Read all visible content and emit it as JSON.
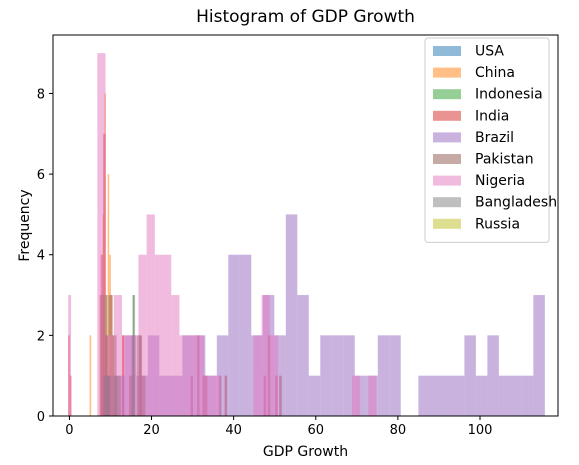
{
  "chart_data": {
    "type": "histogram",
    "title": "Histogram of GDP Growth",
    "xlabel": "GDP Growth",
    "ylabel": "Frequency",
    "xlim": [
      -4,
      119
    ],
    "ylim": [
      0,
      9.45
    ],
    "xticks": [
      0,
      20,
      40,
      60,
      80,
      100
    ],
    "yticks": [
      0,
      2,
      4,
      6,
      8
    ],
    "grid": false,
    "legend_position": "top-right",
    "series": [
      {
        "name": "USA",
        "color": "#1f77b4",
        "bins": []
      },
      {
        "name": "China",
        "color": "#ff7f0e",
        "bins": [
          [
            4.9,
            5.3,
            2
          ],
          [
            7.3,
            7.7,
            3
          ],
          [
            8.1,
            8.5,
            5
          ],
          [
            8.5,
            8.9,
            8
          ],
          [
            8.9,
            9.3,
            3
          ],
          [
            9.3,
            9.7,
            6
          ],
          [
            9.7,
            10.1,
            4
          ],
          [
            10.1,
            10.5,
            3
          ],
          [
            10.5,
            10.9,
            2
          ],
          [
            10.9,
            11.3,
            1
          ],
          [
            12.9,
            13.3,
            2
          ]
        ]
      },
      {
        "name": "Indonesia",
        "color": "#2ca02c",
        "bins": [
          [
            15.4,
            15.8,
            3
          ],
          [
            17.3,
            17.7,
            2
          ]
        ]
      },
      {
        "name": "India",
        "color": "#d62728",
        "bins": [
          [
            -0.3,
            0.1,
            2
          ],
          [
            0.1,
            0.5,
            1
          ],
          [
            7.6,
            8.2,
            4
          ],
          [
            8.2,
            8.8,
            7
          ],
          [
            8.8,
            9.4,
            2
          ],
          [
            9.4,
            10.0,
            1
          ],
          [
            12.8,
            13.4,
            2
          ],
          [
            15.1,
            15.7,
            2
          ],
          [
            16.9,
            17.5,
            2
          ],
          [
            29.5,
            30.1,
            1
          ],
          [
            31.1,
            31.7,
            2
          ],
          [
            32.4,
            33.0,
            1
          ],
          [
            33.0,
            33.6,
            1
          ],
          [
            36.4,
            37.0,
            1
          ],
          [
            37.8,
            38.4,
            1
          ],
          [
            47.3,
            47.9,
            1
          ],
          [
            48.3,
            48.9,
            2
          ],
          [
            50.1,
            50.7,
            1
          ],
          [
            51.1,
            51.7,
            1
          ]
        ]
      },
      {
        "name": "Brazil",
        "color": "#9467bd",
        "bins": [
          [
            7.9,
            10.7,
            1
          ],
          [
            10.7,
            13.5,
            1
          ],
          [
            13.5,
            16.3,
            2
          ],
          [
            16.3,
            19.1,
            1
          ],
          [
            19.1,
            21.9,
            2
          ],
          [
            21.9,
            24.7,
            1
          ],
          [
            24.7,
            27.5,
            1
          ],
          [
            27.5,
            30.3,
            2
          ],
          [
            30.3,
            33.1,
            2
          ],
          [
            33.1,
            35.9,
            1
          ],
          [
            35.9,
            38.7,
            2
          ],
          [
            38.7,
            41.5,
            4
          ],
          [
            41.5,
            44.3,
            4
          ],
          [
            44.3,
            47.1,
            2
          ],
          [
            47.1,
            49.9,
            3
          ],
          [
            49.9,
            52.7,
            2
          ],
          [
            52.7,
            55.5,
            5
          ],
          [
            55.5,
            58.3,
            3
          ],
          [
            58.3,
            61.1,
            1
          ],
          [
            61.1,
            63.9,
            2
          ],
          [
            63.9,
            66.7,
            2
          ],
          [
            66.7,
            69.5,
            2
          ],
          [
            69.5,
            72.3,
            1
          ],
          [
            72.3,
            75.1,
            1
          ],
          [
            75.1,
            77.9,
            2
          ],
          [
            77.9,
            80.7,
            2
          ],
          [
            85.0,
            87.8,
            1
          ],
          [
            87.8,
            90.6,
            1
          ],
          [
            90.6,
            93.4,
            1
          ],
          [
            93.4,
            96.2,
            1
          ],
          [
            96.2,
            99.0,
            2
          ],
          [
            99.0,
            101.8,
            1
          ],
          [
            101.8,
            104.6,
            2
          ],
          [
            104.6,
            107.4,
            1
          ],
          [
            107.4,
            110.2,
            1
          ],
          [
            110.2,
            113.0,
            1
          ],
          [
            113.0,
            115.8,
            3
          ]
        ]
      },
      {
        "name": "Pakistan",
        "color": "#8c564b",
        "bins": [
          [
            7.5,
            8.5,
            3
          ],
          [
            8.5,
            9.5,
            1
          ],
          [
            9.5,
            10.5,
            3
          ],
          [
            10.5,
            11.5,
            2
          ],
          [
            11.5,
            12.5,
            1
          ],
          [
            14.5,
            15.5,
            1
          ],
          [
            16.5,
            17.5,
            2
          ],
          [
            17.5,
            18.5,
            1
          ]
        ]
      },
      {
        "name": "Nigeria",
        "color": "#e377c2",
        "bins": [
          [
            -0.3,
            0.4,
            3
          ],
          [
            6.8,
            8.8,
            9
          ],
          [
            8.8,
            10.8,
            2
          ],
          [
            10.8,
            12.8,
            3
          ],
          [
            12.8,
            14.8,
            2
          ],
          [
            14.8,
            16.8,
            2
          ],
          [
            16.8,
            18.8,
            4
          ],
          [
            18.8,
            20.8,
            5
          ],
          [
            20.8,
            22.8,
            4
          ],
          [
            22.8,
            24.8,
            4
          ],
          [
            24.8,
            26.8,
            3
          ],
          [
            26.8,
            28.8,
            2
          ],
          [
            28.8,
            30.8,
            2
          ],
          [
            30.8,
            32.8,
            2
          ],
          [
            32.8,
            34.8,
            1
          ],
          [
            34.8,
            36.8,
            1
          ],
          [
            44.8,
            46.8,
            2
          ],
          [
            46.8,
            48.8,
            3
          ],
          [
            48.8,
            50.8,
            2
          ],
          [
            68.8,
            70.8,
            1
          ],
          [
            72.8,
            74.8,
            1
          ]
        ]
      },
      {
        "name": "Bangladesh",
        "color": "#7f7f7f",
        "bins": [
          [
            8.6,
            9.2,
            3
          ],
          [
            9.2,
            9.8,
            1
          ],
          [
            11.0,
            11.6,
            1
          ],
          [
            15.4,
            16.0,
            3
          ]
        ]
      },
      {
        "name": "Russia",
        "color": "#bcbd22",
        "bins": []
      }
    ]
  }
}
